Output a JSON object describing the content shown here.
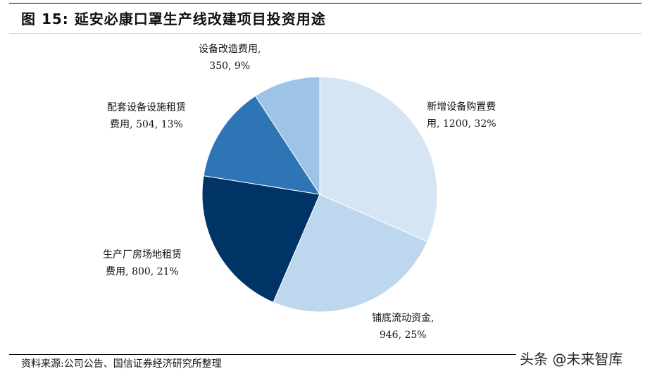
{
  "header": {
    "title": "图 15:  延安必康口罩生产线改建项目投资用途"
  },
  "chart_data": {
    "type": "pie",
    "title": "延安必康口罩生产线改建项目投资用途",
    "figure_number": "图 15",
    "start_angle": "12 o'clock, clockwise",
    "categories": [
      "新增设备购置费用",
      "铺底流动资金",
      "生产厂房场地租赁费用",
      "配套设备设施租赁费用",
      "设备改造费用"
    ],
    "values": [
      1200,
      946,
      800,
      504,
      350
    ],
    "percentages": [
      32,
      25,
      21,
      13,
      9
    ],
    "colors": [
      "#D6E5F4",
      "#BDD7EE",
      "#003366",
      "#2E75B6",
      "#9DC3E6"
    ],
    "legend": "none (data labels)"
  },
  "labels": [
    {
      "line1": "新增设备购置费",
      "line2": "用, 1200, 32%"
    },
    {
      "line1": "铺底流动资金,",
      "line2": "946, 25%"
    },
    {
      "line1": "生产厂房场地租赁",
      "line2": "费用, 800, 21%"
    },
    {
      "line1": "配套设备设施租赁",
      "line2": "费用, 504, 13%"
    },
    {
      "line1": "设备改造费用,",
      "line2": "350, 9%"
    }
  ],
  "footer": {
    "source": "资料来源:公司公告、国信证券经济研究所整理",
    "watermark": "头条 @未来智库"
  }
}
